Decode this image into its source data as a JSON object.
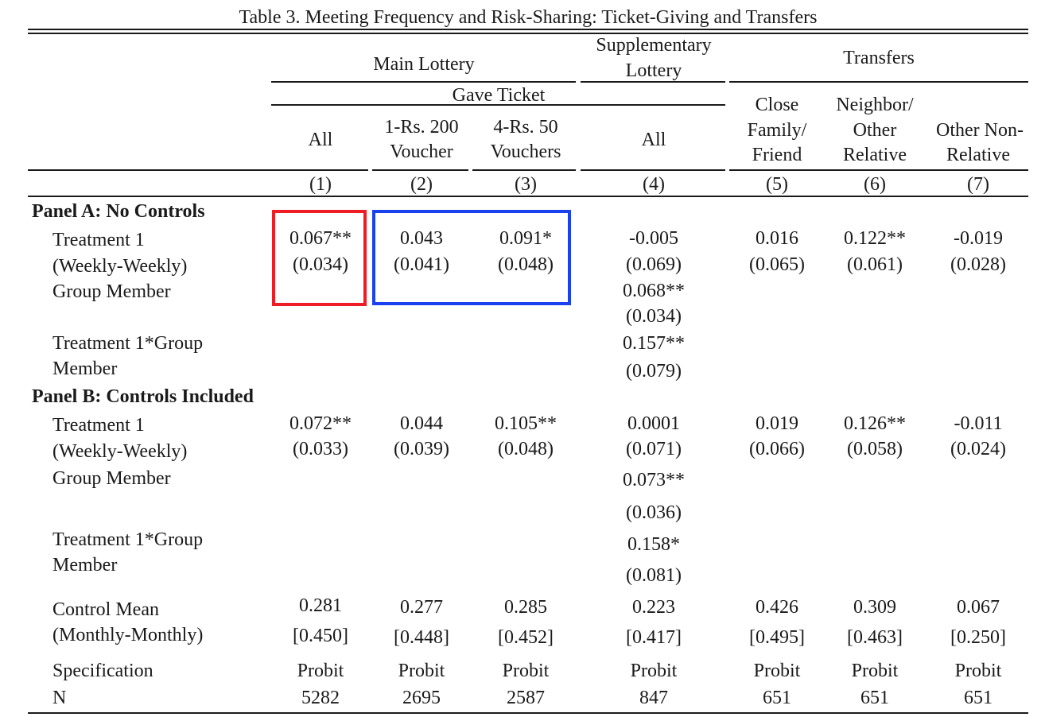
{
  "title": "Table 3. Meeting Frequency and Risk-Sharing: Ticket-Giving and Transfers",
  "annotations": {
    "box1_color": "#ee1c24",
    "box2_color": "#1a40f0"
  },
  "header": {
    "main_lottery": "Main Lottery",
    "supp_line1": "Supplementary",
    "supp_line2": "Lottery",
    "transfers": "Transfers",
    "gave_ticket": "Gave Ticket",
    "col1": "All",
    "col2_l1": "1-Rs. 200",
    "col2_l2": "Voucher",
    "col3_l1": "4-Rs. 50",
    "col3_l2": "Vouchers",
    "col4": "All",
    "col5_l1": "Close",
    "col5_l2": "Family/",
    "col5_l3": "Friend",
    "col6_l1": "Neighbor/",
    "col6_l2": "Other",
    "col6_l3": "Relative",
    "col7_l1": "Other Non-",
    "col7_l2": "Relative",
    "nums": [
      "(1)",
      "(2)",
      "(3)",
      "(4)",
      "(5)",
      "(6)",
      "(7)"
    ]
  },
  "panel_a": {
    "title": "Panel A: No Controls",
    "t1_l1": "Treatment 1",
    "t1_l2": "(Weekly-Weekly)",
    "gm": "Group Member",
    "int_l1": "Treatment 1*Group",
    "int_l2": "Member",
    "t1_coef": [
      "0.067**",
      "0.043",
      "0.091*",
      "-0.005",
      "0.016",
      "0.122**",
      "-0.019"
    ],
    "t1_se": [
      "(0.034)",
      "(0.041)",
      "(0.048)",
      "(0.069)",
      "(0.065)",
      "(0.061)",
      "(0.028)"
    ],
    "gm_coef": "0.068**",
    "gm_se": "(0.034)",
    "int_coef": "0.157**",
    "int_se": "(0.079)"
  },
  "panel_b": {
    "title": "Panel B: Controls Included",
    "t1_l1": "Treatment 1",
    "t1_l2": "(Weekly-Weekly)",
    "gm": "Group Member",
    "int_l1": "Treatment 1*Group",
    "int_l2": "Member",
    "t1_coef": [
      "0.072**",
      "0.044",
      "0.105**",
      "0.0001",
      "0.019",
      "0.126**",
      "-0.011"
    ],
    "t1_se": [
      "(0.033)",
      "(0.039)",
      "(0.048)",
      "(0.071)",
      "(0.066)",
      "(0.058)",
      "(0.024)"
    ],
    "gm_coef": "0.073**",
    "gm_se": "(0.036)",
    "int_coef": "0.158*",
    "int_se": "(0.081)"
  },
  "footer": {
    "cm_l1": "Control Mean",
    "cm_l2": "(Monthly-Monthly)",
    "cm": [
      "0.281",
      "0.277",
      "0.285",
      "0.223",
      "0.426",
      "0.309",
      "0.067"
    ],
    "cm_sd": [
      "[0.450]",
      "[0.448]",
      "[0.452]",
      "[0.417]",
      "[0.495]",
      "[0.463]",
      "[0.250]"
    ],
    "spec_label": "Specification",
    "spec": [
      "Probit",
      "Probit",
      "Probit",
      "Probit",
      "Probit",
      "Probit",
      "Probit"
    ],
    "n_label": "N",
    "n": [
      "5282",
      "2695",
      "2587",
      "847",
      "651",
      "651",
      "651"
    ]
  }
}
